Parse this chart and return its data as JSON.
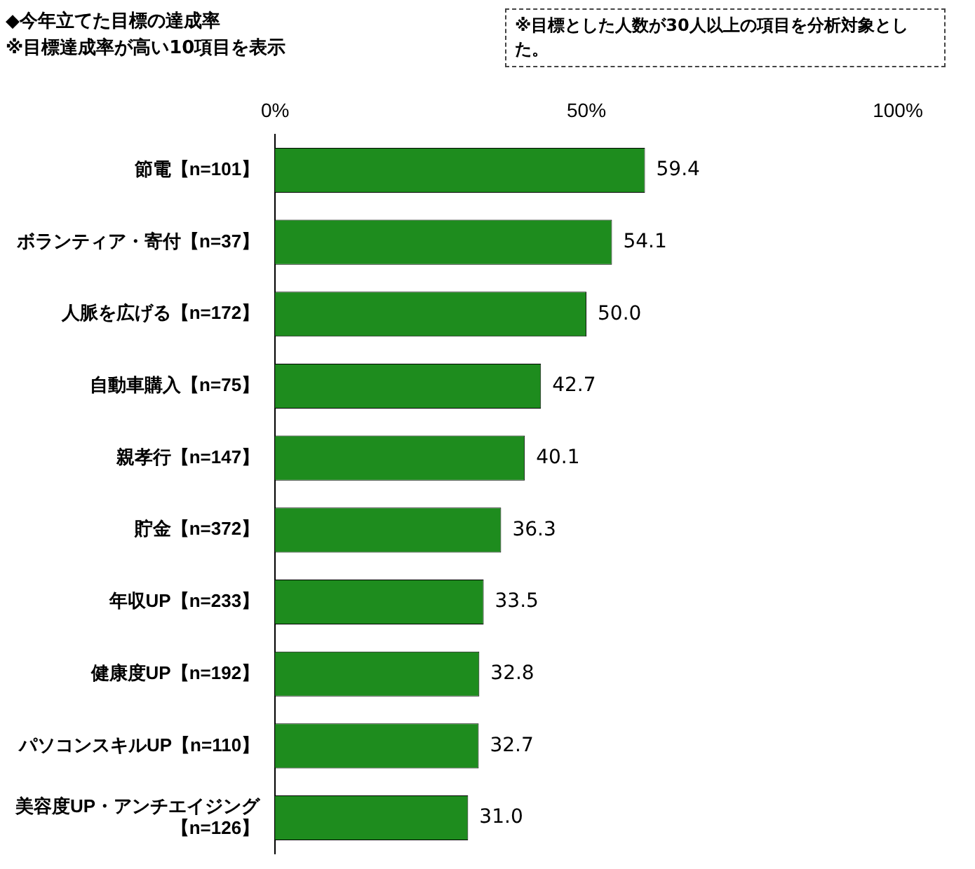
{
  "chart_data": {
    "type": "bar",
    "orientation": "horizontal",
    "title": "◆今年立てた目標の達成率",
    "subtitle": "※目標達成率が高い10項目を表示",
    "annotations": [
      "※目標とした人数が30人以上の項目を分析対象とした。"
    ],
    "categories": [
      "節電【n=101】",
      "ボランティア・寄付【n=37】",
      "人脈を広げる【n=172】",
      "自動車購入【n=75】",
      "親孝行【n=147】",
      "貯金【n=372】",
      "年収UP【n=233】",
      "健康度UP【n=192】",
      "パソコンスキルUP【n=110】",
      "美容度UP・アンチエイジング【n=126】"
    ],
    "values": [
      59.4,
      54.1,
      50.0,
      42.7,
      40.1,
      36.3,
      33.5,
      32.8,
      32.7,
      31.0
    ],
    "value_labels": [
      "59.4",
      "54.1",
      "50.0",
      "42.7",
      "40.1",
      "36.3",
      "33.5",
      "32.8",
      "32.7",
      "31.0"
    ],
    "color": "#1e8c1e",
    "xlim": [
      0,
      100
    ],
    "xticks": [
      {
        "value": 0,
        "label": "0%"
      },
      {
        "value": 50,
        "label": "50%"
      },
      {
        "value": 100,
        "label": "100%"
      }
    ],
    "grid": false,
    "legend": false
  }
}
